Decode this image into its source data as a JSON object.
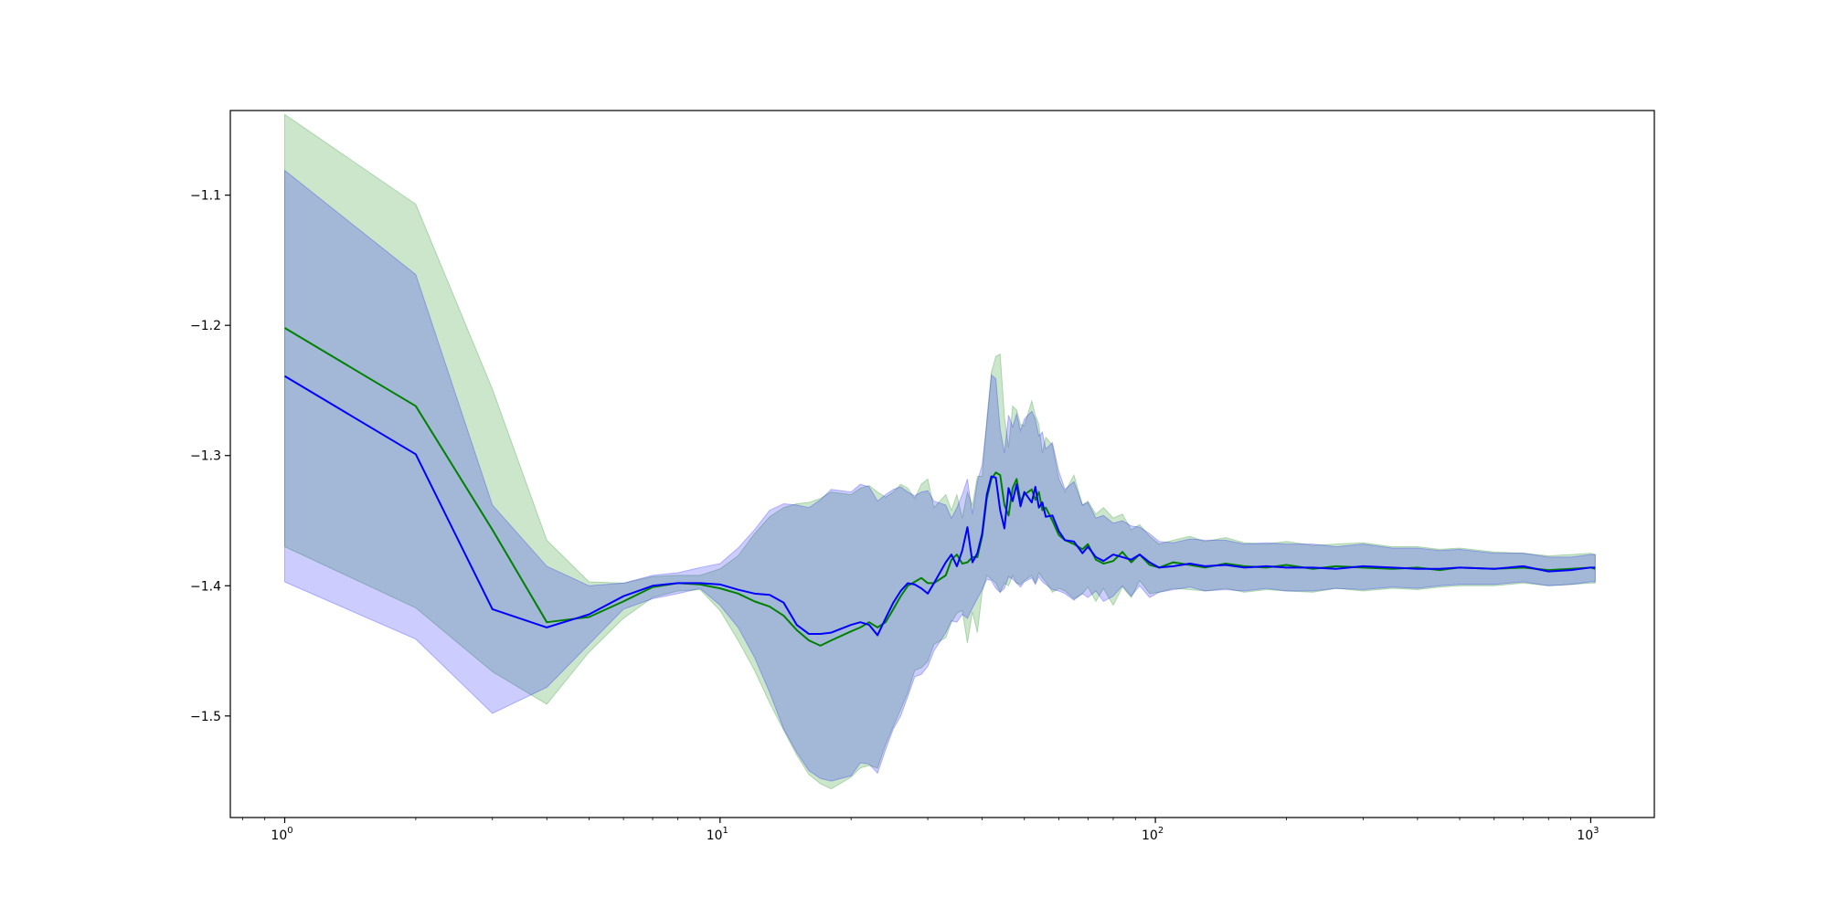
{
  "chart_data": {
    "type": "line",
    "title": "",
    "xlabel": "",
    "ylabel": "",
    "xscale": "log",
    "xlim": [
      0.75,
      1400
    ],
    "ylim": [
      -1.578,
      -1.035
    ],
    "grid": false,
    "legend": "none",
    "x_ticks": [
      {
        "value": 1,
        "base": "10",
        "exp": "0"
      },
      {
        "value": 10,
        "base": "10",
        "exp": "1"
      },
      {
        "value": 100,
        "base": "10",
        "exp": "2"
      },
      {
        "value": 1000,
        "base": "10",
        "exp": "3"
      }
    ],
    "y_ticks": [
      {
        "value": -1.1,
        "label": "−1.1"
      },
      {
        "value": -1.2,
        "label": "−1.2"
      },
      {
        "value": -1.3,
        "label": "−1.3"
      },
      {
        "value": -1.4,
        "label": "−1.4"
      },
      {
        "value": -1.5,
        "label": "−1.5"
      }
    ],
    "series": [
      {
        "color": "#008000",
        "band_color": "#008000",
        "band_opacity": 0.2,
        "points": [
          [
            1,
            -1.202,
            -1.37,
            -1.038
          ],
          [
            2,
            -1.262,
            -1.417,
            -1.107
          ],
          [
            3,
            -1.357,
            -1.466,
            -1.249
          ],
          [
            4,
            -1.428,
            -1.491,
            -1.365
          ],
          [
            5,
            -1.424,
            -1.451,
            -1.397
          ],
          [
            6,
            -1.412,
            -1.425,
            -1.398
          ],
          [
            7,
            -1.401,
            -1.409,
            -1.393
          ],
          [
            8,
            -1.398,
            -1.404,
            -1.392
          ],
          [
            9,
            -1.399,
            -1.403,
            -1.392
          ],
          [
            10,
            -1.402,
            -1.419,
            -1.387
          ],
          [
            11,
            -1.406,
            -1.442,
            -1.377
          ],
          [
            12,
            -1.412,
            -1.465,
            -1.36
          ],
          [
            13,
            -1.416,
            -1.49,
            -1.347
          ],
          [
            14,
            -1.423,
            -1.511,
            -1.34
          ],
          [
            15,
            -1.434,
            -1.53,
            -1.337
          ],
          [
            16,
            -1.442,
            -1.545,
            -1.336
          ],
          [
            17,
            -1.446,
            -1.552,
            -1.333
          ],
          [
            18,
            -1.442,
            -1.556,
            -1.328
          ],
          [
            20,
            -1.435,
            -1.547,
            -1.33
          ],
          [
            21,
            -1.432,
            -1.54,
            -1.325
          ],
          [
            22,
            -1.428,
            -1.538,
            -1.323
          ],
          [
            23,
            -1.432,
            -1.54,
            -1.328
          ],
          [
            24,
            -1.428,
            -1.522,
            -1.332
          ],
          [
            25,
            -1.418,
            -1.508,
            -1.328
          ],
          [
            26,
            -1.408,
            -1.495,
            -1.322
          ],
          [
            27,
            -1.4,
            -1.482,
            -1.325
          ],
          [
            28,
            -1.397,
            -1.465,
            -1.333
          ],
          [
            29,
            -1.394,
            -1.463,
            -1.322
          ],
          [
            30,
            -1.398,
            -1.458,
            -1.318
          ],
          [
            31,
            -1.398,
            -1.445,
            -1.34
          ],
          [
            33,
            -1.392,
            -1.44,
            -1.33
          ],
          [
            34,
            -1.38,
            -1.428,
            -1.342
          ],
          [
            35,
            -1.376,
            -1.421,
            -1.33
          ],
          [
            36,
            -1.383,
            -1.419,
            -1.348
          ],
          [
            37,
            -1.382,
            -1.444,
            -1.328
          ],
          [
            38,
            -1.378,
            -1.42,
            -1.338
          ],
          [
            39,
            -1.378,
            -1.436,
            -1.316
          ],
          [
            40,
            -1.362,
            -1.405,
            -1.316
          ],
          [
            41,
            -1.333,
            -1.392,
            -1.272
          ],
          [
            42,
            -1.318,
            -1.395,
            -1.236
          ],
          [
            43,
            -1.313,
            -1.398,
            -1.224
          ],
          [
            44,
            -1.315,
            -1.405,
            -1.222
          ],
          [
            45,
            -1.338,
            -1.398,
            -1.27
          ],
          [
            46,
            -1.346,
            -1.4,
            -1.294
          ],
          [
            47,
            -1.325,
            -1.392,
            -1.262
          ],
          [
            48,
            -1.318,
            -1.398,
            -1.265
          ],
          [
            49,
            -1.335,
            -1.399,
            -1.276
          ],
          [
            50,
            -1.33,
            -1.396,
            -1.277
          ],
          [
            52,
            -1.326,
            -1.392,
            -1.258
          ],
          [
            53,
            -1.334,
            -1.398,
            -1.269
          ],
          [
            54,
            -1.328,
            -1.39,
            -1.276
          ],
          [
            55,
            -1.342,
            -1.394,
            -1.298
          ],
          [
            56,
            -1.34,
            -1.397,
            -1.286
          ],
          [
            58,
            -1.35,
            -1.405,
            -1.292
          ],
          [
            60,
            -1.361,
            -1.402,
            -1.318
          ],
          [
            62,
            -1.365,
            -1.404,
            -1.328
          ],
          [
            65,
            -1.368,
            -1.41,
            -1.315
          ],
          [
            68,
            -1.372,
            -1.406,
            -1.338
          ],
          [
            70,
            -1.368,
            -1.401,
            -1.335
          ],
          [
            73,
            -1.38,
            -1.412,
            -1.345
          ],
          [
            76,
            -1.383,
            -1.402,
            -1.34
          ],
          [
            80,
            -1.381,
            -1.415,
            -1.348
          ],
          [
            84,
            -1.374,
            -1.401,
            -1.345
          ],
          [
            88,
            -1.382,
            -1.409,
            -1.357
          ],
          [
            92,
            -1.376,
            -1.396,
            -1.353
          ],
          [
            97,
            -1.384,
            -1.406,
            -1.362
          ],
          [
            102,
            -1.386,
            -1.405,
            -1.368
          ],
          [
            110,
            -1.382,
            -1.402,
            -1.365
          ],
          [
            120,
            -1.384,
            -1.403,
            -1.362
          ],
          [
            130,
            -1.386,
            -1.404,
            -1.366
          ],
          [
            145,
            -1.383,
            -1.402,
            -1.363
          ],
          [
            160,
            -1.385,
            -1.405,
            -1.367
          ],
          [
            180,
            -1.386,
            -1.403,
            -1.368
          ],
          [
            200,
            -1.384,
            -1.404,
            -1.366
          ],
          [
            230,
            -1.387,
            -1.405,
            -1.369
          ],
          [
            260,
            -1.385,
            -1.402,
            -1.368
          ],
          [
            300,
            -1.386,
            -1.404,
            -1.367
          ],
          [
            350,
            -1.387,
            -1.402,
            -1.37
          ],
          [
            400,
            -1.386,
            -1.403,
            -1.37
          ],
          [
            450,
            -1.388,
            -1.401,
            -1.372
          ],
          [
            500,
            -1.386,
            -1.4,
            -1.371
          ],
          [
            600,
            -1.387,
            -1.4,
            -1.374
          ],
          [
            700,
            -1.386,
            -1.398,
            -1.375
          ],
          [
            800,
            -1.388,
            -1.4,
            -1.377
          ],
          [
            900,
            -1.387,
            -1.399,
            -1.376
          ],
          [
            1000,
            -1.386,
            -1.398,
            -1.375
          ],
          [
            1024,
            -1.387,
            -1.398,
            -1.376
          ]
        ]
      },
      {
        "color": "#0000ff",
        "band_color": "#0000ff",
        "band_opacity": 0.2,
        "points": [
          [
            1,
            -1.239,
            -1.397,
            -1.081
          ],
          [
            2,
            -1.299,
            -1.441,
            -1.161
          ],
          [
            3,
            -1.418,
            -1.498,
            -1.338
          ],
          [
            4,
            -1.432,
            -1.478,
            -1.385
          ],
          [
            5,
            -1.422,
            -1.445,
            -1.4
          ],
          [
            6,
            -1.408,
            -1.418,
            -1.398
          ],
          [
            7,
            -1.4,
            -1.41,
            -1.392
          ],
          [
            8,
            -1.398,
            -1.406,
            -1.39
          ],
          [
            9,
            -1.398,
            -1.402,
            -1.386
          ],
          [
            10,
            -1.399,
            -1.415,
            -1.383
          ],
          [
            11,
            -1.403,
            -1.432,
            -1.371
          ],
          [
            12,
            -1.406,
            -1.455,
            -1.357
          ],
          [
            13,
            -1.407,
            -1.482,
            -1.342
          ],
          [
            14,
            -1.413,
            -1.51,
            -1.337
          ],
          [
            15,
            -1.43,
            -1.528,
            -1.338
          ],
          [
            16,
            -1.437,
            -1.542,
            -1.34
          ],
          [
            17,
            -1.437,
            -1.548,
            -1.334
          ],
          [
            18,
            -1.436,
            -1.55,
            -1.326
          ],
          [
            20,
            -1.43,
            -1.546,
            -1.328
          ],
          [
            21,
            -1.428,
            -1.536,
            -1.322
          ],
          [
            22,
            -1.43,
            -1.537,
            -1.324
          ],
          [
            23,
            -1.438,
            -1.544,
            -1.335
          ],
          [
            24,
            -1.425,
            -1.526,
            -1.33
          ],
          [
            25,
            -1.413,
            -1.51,
            -1.326
          ],
          [
            26,
            -1.404,
            -1.5,
            -1.324
          ],
          [
            27,
            -1.398,
            -1.485,
            -1.328
          ],
          [
            28,
            -1.399,
            -1.47,
            -1.331
          ],
          [
            29,
            -1.402,
            -1.468,
            -1.328
          ],
          [
            30,
            -1.406,
            -1.462,
            -1.327
          ],
          [
            31,
            -1.398,
            -1.45,
            -1.335
          ],
          [
            33,
            -1.382,
            -1.436,
            -1.338
          ],
          [
            34,
            -1.376,
            -1.427,
            -1.348
          ],
          [
            35,
            -1.385,
            -1.428,
            -1.34
          ],
          [
            36,
            -1.373,
            -1.422,
            -1.33
          ],
          [
            37,
            -1.355,
            -1.425,
            -1.318
          ],
          [
            38,
            -1.382,
            -1.417,
            -1.345
          ],
          [
            39,
            -1.375,
            -1.41,
            -1.32
          ],
          [
            40,
            -1.36,
            -1.403,
            -1.307
          ],
          [
            41,
            -1.33,
            -1.395,
            -1.275
          ],
          [
            42,
            -1.316,
            -1.396,
            -1.238
          ],
          [
            43,
            -1.317,
            -1.402,
            -1.241
          ],
          [
            44,
            -1.342,
            -1.405,
            -1.28
          ],
          [
            45,
            -1.356,
            -1.402,
            -1.298
          ],
          [
            46,
            -1.325,
            -1.393,
            -1.269
          ],
          [
            47,
            -1.335,
            -1.395,
            -1.278
          ],
          [
            48,
            -1.322,
            -1.398,
            -1.268
          ],
          [
            49,
            -1.339,
            -1.401,
            -1.281
          ],
          [
            50,
            -1.328,
            -1.397,
            -1.272
          ],
          [
            52,
            -1.336,
            -1.394,
            -1.266
          ],
          [
            53,
            -1.324,
            -1.399,
            -1.272
          ],
          [
            54,
            -1.34,
            -1.393,
            -1.285
          ],
          [
            55,
            -1.336,
            -1.397,
            -1.282
          ],
          [
            56,
            -1.347,
            -1.399,
            -1.295
          ],
          [
            58,
            -1.346,
            -1.403,
            -1.29
          ],
          [
            60,
            -1.358,
            -1.404,
            -1.312
          ],
          [
            62,
            -1.365,
            -1.406,
            -1.326
          ],
          [
            65,
            -1.366,
            -1.411,
            -1.32
          ],
          [
            68,
            -1.375,
            -1.406,
            -1.338
          ],
          [
            70,
            -1.37,
            -1.409,
            -1.336
          ],
          [
            73,
            -1.378,
            -1.404,
            -1.348
          ],
          [
            76,
            -1.381,
            -1.412,
            -1.346
          ],
          [
            80,
            -1.376,
            -1.408,
            -1.352
          ],
          [
            84,
            -1.378,
            -1.4,
            -1.35
          ],
          [
            88,
            -1.38,
            -1.408,
            -1.354
          ],
          [
            92,
            -1.376,
            -1.4,
            -1.355
          ],
          [
            97,
            -1.382,
            -1.409,
            -1.36
          ],
          [
            102,
            -1.386,
            -1.405,
            -1.366
          ],
          [
            110,
            -1.385,
            -1.403,
            -1.367
          ],
          [
            120,
            -1.383,
            -1.401,
            -1.364
          ],
          [
            130,
            -1.385,
            -1.404,
            -1.365
          ],
          [
            145,
            -1.384,
            -1.403,
            -1.365
          ],
          [
            160,
            -1.386,
            -1.404,
            -1.368
          ],
          [
            180,
            -1.385,
            -1.402,
            -1.367
          ],
          [
            200,
            -1.386,
            -1.404,
            -1.368
          ],
          [
            230,
            -1.386,
            -1.404,
            -1.368
          ],
          [
            260,
            -1.387,
            -1.402,
            -1.37
          ],
          [
            300,
            -1.385,
            -1.403,
            -1.368
          ],
          [
            350,
            -1.386,
            -1.401,
            -1.371
          ],
          [
            400,
            -1.387,
            -1.402,
            -1.371
          ],
          [
            450,
            -1.387,
            -1.4,
            -1.373
          ],
          [
            500,
            -1.386,
            -1.399,
            -1.372
          ],
          [
            600,
            -1.387,
            -1.399,
            -1.375
          ],
          [
            700,
            -1.385,
            -1.397,
            -1.375
          ],
          [
            800,
            -1.389,
            -1.4,
            -1.378
          ],
          [
            900,
            -1.388,
            -1.399,
            -1.378
          ],
          [
            1000,
            -1.386,
            -1.397,
            -1.376
          ],
          [
            1024,
            -1.386,
            -1.397,
            -1.376
          ]
        ]
      }
    ]
  }
}
